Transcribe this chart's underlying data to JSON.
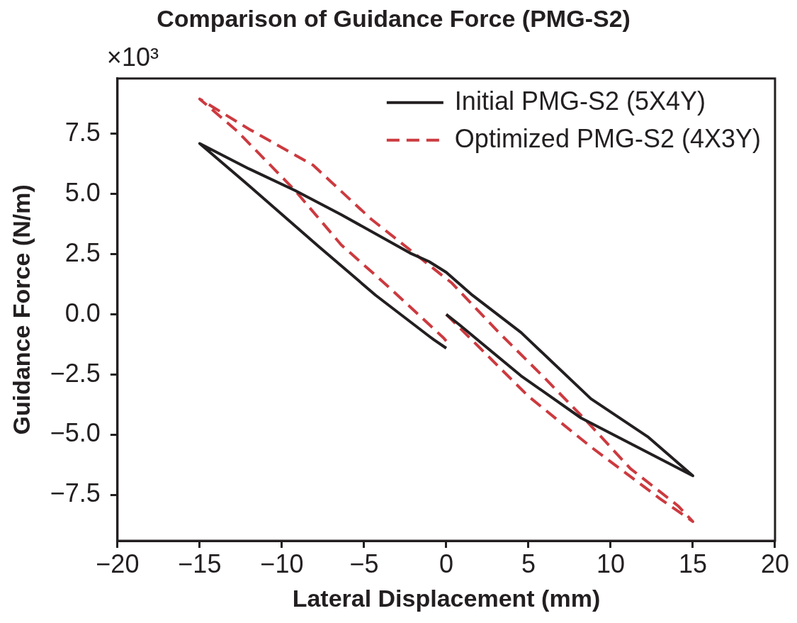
{
  "chart_data": {
    "type": "line",
    "title": "Comparison of Guidance Force (PMG-S2)",
    "xlabel": "Lateral Displacement (mm)",
    "ylabel": "Guidance Force (N/m)",
    "annotations": [
      "×10³"
    ],
    "xlim": [
      -20,
      20
    ],
    "xticks": [
      {
        "value": -20,
        "label": "−20"
      },
      {
        "value": -15,
        "label": "−15"
      },
      {
        "value": -10,
        "label": "−10"
      },
      {
        "value": -5,
        "label": "−5"
      },
      0,
      5,
      10,
      15,
      20
    ],
    "ylim": [
      -9.4,
      9.8
    ],
    "yticks": [
      {
        "value": -7.5,
        "label": "−7.5"
      },
      {
        "value": -5,
        "label": "−5.0"
      },
      {
        "value": -2.5,
        "label": "−2.5"
      },
      {
        "value": 0,
        "label": "0.0"
      },
      {
        "value": 2.5,
        "label": "2.5"
      },
      {
        "value": 5,
        "label": "5.0"
      },
      {
        "value": 7.5,
        "label": "7.5"
      }
    ],
    "grid": false,
    "legend": "top right",
    "marker": "none",
    "series": [
      {
        "name": "Initial PMG-S2 (5X4Y)",
        "color": "#231f20",
        "line_style": "solid",
        "x": [
          0,
          0.75,
          4.55,
          8.2,
          11.6,
          15,
          12.3,
          8.8,
          4.55,
          1.5,
          0,
          -1.05,
          -2.2,
          -6.4,
          -9.2,
          -12,
          -15,
          -12,
          -7.8,
          -4.3,
          -1.05,
          -0.75,
          0
        ],
        "values": [
          0,
          -0.4,
          -2.55,
          -4.3,
          -5.5,
          -6.7,
          -5.1,
          -3.5,
          -0.75,
          0.85,
          1.75,
          2.2,
          2.55,
          4.15,
          5.15,
          6.05,
          7.1,
          5.35,
          2.85,
          0.8,
          -0.9,
          -1.05,
          -1.4
        ]
      },
      {
        "name": "Optimized PMG-S2 (4X3Y)",
        "color": "#cc3a3f",
        "line_style": "dashed",
        "x": [
          0,
          5,
          8.8,
          13,
          15,
          14.1,
          11.2,
          8.5,
          6,
          3.2,
          0.35,
          -4.55,
          -8.1,
          -12,
          -15,
          -12.7,
          -9.2,
          -6.4,
          -3.6,
          -0.2,
          0
        ],
        "values": [
          0,
          -3.4,
          -5.5,
          -7.65,
          -8.6,
          -7.95,
          -6.4,
          -4.4,
          -2.65,
          -0.75,
          1.3,
          3.95,
          6.2,
          7.7,
          8.95,
          7.6,
          5.15,
          2.9,
          1.2,
          -0.95,
          -1.1
        ]
      }
    ]
  }
}
